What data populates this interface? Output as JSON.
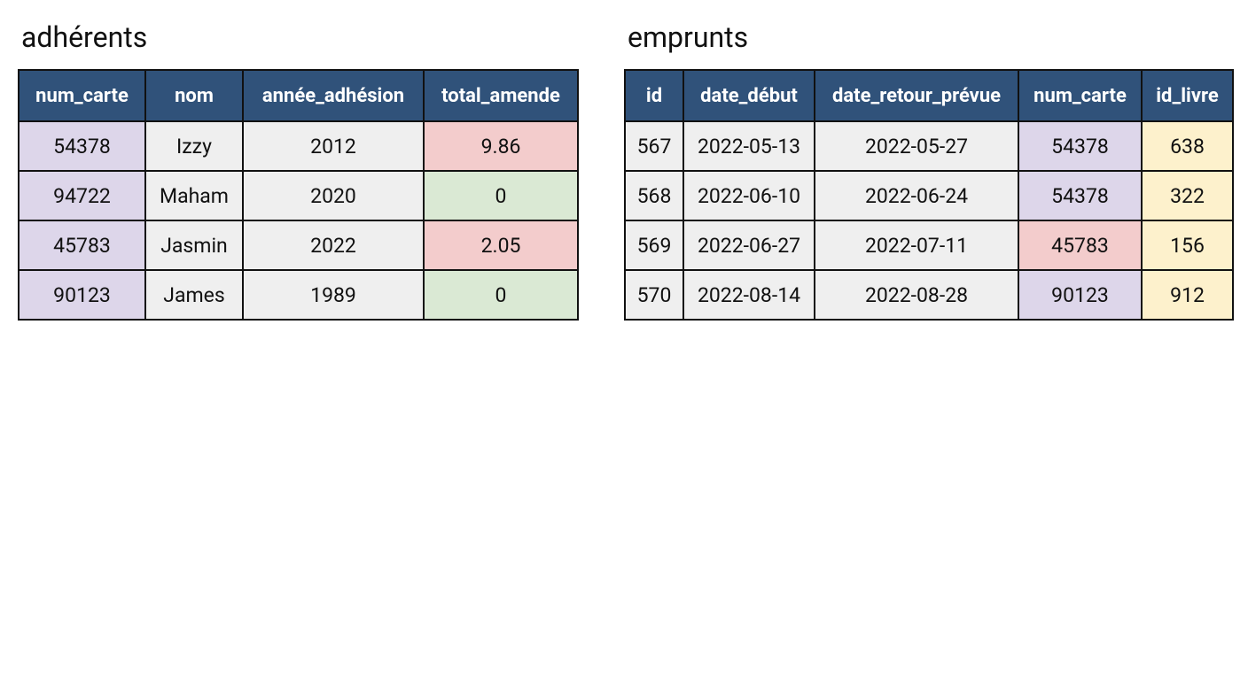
{
  "tables": [
    {
      "title": "adhérents",
      "header_color": "#30527a",
      "column_widths": [
        143,
        110,
        204,
        174
      ],
      "columns": [
        "num_carte",
        "nom",
        "année_adhésion",
        "total_amende"
      ],
      "rows": [
        [
          "54378",
          "Izzy",
          "2012",
          "9.86"
        ],
        [
          "94722",
          "Maham",
          "2020",
          "0"
        ],
        [
          "45783",
          "Jasmin",
          "2022",
          "2.05"
        ],
        [
          "90123",
          "James",
          "1989",
          "0"
        ]
      ],
      "cell_colors": [
        [
          "#ddd6ea",
          "#efefef",
          "#efefef",
          "#f3cccc"
        ],
        [
          "#ddd6ea",
          "#efefef",
          "#efefef",
          "#dae9d4"
        ],
        [
          "#ddd6ea",
          "#efefef",
          "#efefef",
          "#f3cccc"
        ],
        [
          "#ddd6ea",
          "#efefef",
          "#efefef",
          "#dae9d4"
        ]
      ]
    },
    {
      "title": "emprunts",
      "header_color": "#30527a",
      "column_widths": [
        66,
        148,
        230,
        139,
        103
      ],
      "columns": [
        "id",
        "date_début",
        "date_retour_prévue",
        "num_carte",
        "id_livre"
      ],
      "rows": [
        [
          "567",
          "2022-05-13",
          "2022-05-27",
          "54378",
          "638"
        ],
        [
          "568",
          "2022-06-10",
          "2022-06-24",
          "54378",
          "322"
        ],
        [
          "569",
          "2022-06-27",
          "2022-07-11",
          "45783",
          "156"
        ],
        [
          "570",
          "2022-08-14",
          "2022-08-28",
          "90123",
          "912"
        ]
      ],
      "cell_colors": [
        [
          "#efefef",
          "#efefef",
          "#efefef",
          "#ddd6ea",
          "#fdf1cc"
        ],
        [
          "#efefef",
          "#efefef",
          "#efefef",
          "#ddd6ea",
          "#fdf1cc"
        ],
        [
          "#efefef",
          "#efefef",
          "#efefef",
          "#f3cccc",
          "#fdf1cc"
        ],
        [
          "#efefef",
          "#efefef",
          "#efefef",
          "#ddd6ea",
          "#fdf1cc"
        ]
      ]
    }
  ]
}
